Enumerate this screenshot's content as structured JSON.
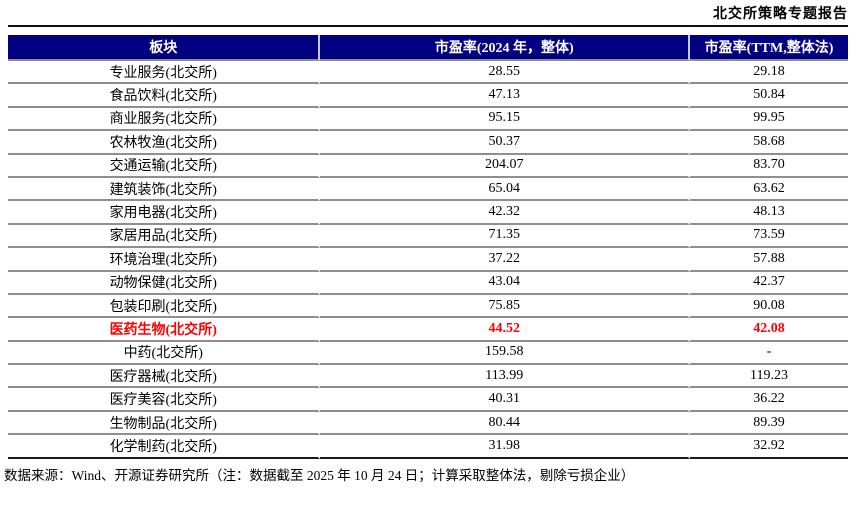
{
  "report": {
    "title": "北交所策略专题报告"
  },
  "table": {
    "columns": [
      "板块",
      "市盈率(2024 年，整体)",
      "市盈率(TTM,整体法)"
    ],
    "rows": [
      {
        "sector": "专业服务(北交所)",
        "pe_2024": "28.55",
        "pe_ttm": "29.18",
        "highlight": false
      },
      {
        "sector": "食品饮料(北交所)",
        "pe_2024": "47.13",
        "pe_ttm": "50.84",
        "highlight": false
      },
      {
        "sector": "商业服务(北交所)",
        "pe_2024": "95.15",
        "pe_ttm": "99.95",
        "highlight": false
      },
      {
        "sector": "农林牧渔(北交所)",
        "pe_2024": "50.37",
        "pe_ttm": "58.68",
        "highlight": false
      },
      {
        "sector": "交通运输(北交所)",
        "pe_2024": "204.07",
        "pe_ttm": "83.70",
        "highlight": false
      },
      {
        "sector": "建筑装饰(北交所)",
        "pe_2024": "65.04",
        "pe_ttm": "63.62",
        "highlight": false
      },
      {
        "sector": "家用电器(北交所)",
        "pe_2024": "42.32",
        "pe_ttm": "48.13",
        "highlight": false
      },
      {
        "sector": "家居用品(北交所)",
        "pe_2024": "71.35",
        "pe_ttm": "73.59",
        "highlight": false
      },
      {
        "sector": "环境治理(北交所)",
        "pe_2024": "37.22",
        "pe_ttm": "57.88",
        "highlight": false
      },
      {
        "sector": "动物保健(北交所)",
        "pe_2024": "43.04",
        "pe_ttm": "42.37",
        "highlight": false
      },
      {
        "sector": "包装印刷(北交所)",
        "pe_2024": "75.85",
        "pe_ttm": "90.08",
        "highlight": false
      },
      {
        "sector": "医药生物(北交所)",
        "pe_2024": "44.52",
        "pe_ttm": "42.08",
        "highlight": true
      },
      {
        "sector": "中药(北交所)",
        "pe_2024": "159.58",
        "pe_ttm": "-",
        "highlight": false
      },
      {
        "sector": "医疗器械(北交所)",
        "pe_2024": "113.99",
        "pe_ttm": "119.23",
        "highlight": false
      },
      {
        "sector": "医疗美容(北交所)",
        "pe_2024": "40.31",
        "pe_ttm": "36.22",
        "highlight": false
      },
      {
        "sector": "生物制品(北交所)",
        "pe_2024": "80.44",
        "pe_ttm": "89.39",
        "highlight": false
      },
      {
        "sector": "化学制药(北交所)",
        "pe_2024": "31.98",
        "pe_ttm": "32.92",
        "highlight": false
      }
    ]
  },
  "footer": {
    "source_note": "数据来源：Wind、开源证券研究所（注：数据截至 2025 年 10 月 24 日；计算采取整体法，剔除亏损企业）"
  },
  "colors": {
    "header_bg": "#000080",
    "header_text": "#ffffff",
    "highlight_text": "#ff0000",
    "row_divider": "#8f8f8f",
    "table_bottom_border": "#1a1a1a"
  }
}
